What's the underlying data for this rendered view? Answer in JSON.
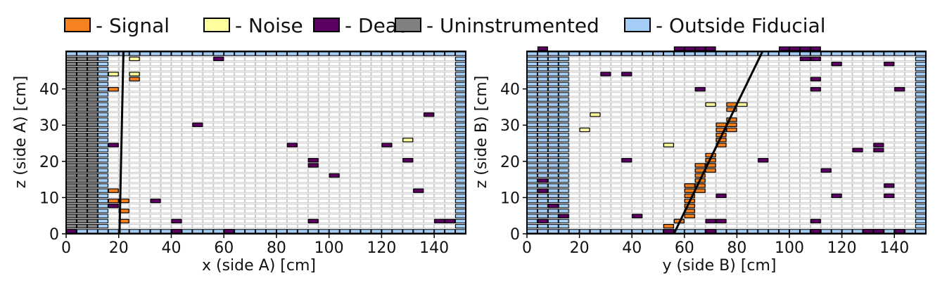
{
  "legend": {
    "items": [
      {
        "label": "- Signal",
        "color": "#f5821f",
        "key": "signal"
      },
      {
        "label": "- Noise",
        "color": "#fefe9e",
        "key": "noise"
      },
      {
        "label": "- Dead",
        "color": "#5b0062",
        "key": "dead"
      },
      {
        "label": "- Uninstrumented",
        "color": "#808080",
        "key": "uninstrumented"
      },
      {
        "label": "- Outside Fiducial",
        "color": "#a3cdf5",
        "key": "outside"
      }
    ]
  },
  "colors": {
    "signal": "#f5821f",
    "noise": "#fefe9e",
    "dead": "#5b0062",
    "uninstrumented": "#808080",
    "outside": "#a3cdf5",
    "empty_fill": "#ffffff",
    "empty_stroke": "#c8c8c8",
    "track": "#000000"
  },
  "chart_data": [
    {
      "type": "scatter",
      "panel": "A",
      "xlabel": "x (side A) [cm]",
      "ylabel": "z (side A) [cm]",
      "xlim": [
        0,
        152
      ],
      "ylim": [
        0,
        50.4
      ],
      "xticks": [
        "0",
        "20",
        "40",
        "60",
        "80",
        "100",
        "120",
        "140"
      ],
      "yticks": [
        "0",
        "10",
        "20",
        "30",
        "40"
      ],
      "grid": {
        "strip_width_cm": 4,
        "row_height_cm": 1.4,
        "rows": 36,
        "columns": 38
      },
      "layers": [
        {
          "name": "uninstrumented",
          "x_range": [
            0,
            12
          ],
          "z_range": [
            1.4,
            49.0
          ],
          "rows": "odd"
        },
        {
          "name": "uninstrumented",
          "x_range": [
            0,
            12
          ],
          "z_range": [
            1.4,
            49.0
          ],
          "rows": "even"
        },
        {
          "name": "outside",
          "x_range": [
            12,
            16
          ],
          "z_range": [
            1.4,
            49.0
          ],
          "rows": "all"
        },
        {
          "name": "outside",
          "x_range": [
            148,
            152
          ],
          "z_range": [
            1.4,
            49.0
          ],
          "rows": "all"
        },
        {
          "name": "outside",
          "x_range": [
            0,
            152
          ],
          "z_range": [
            0,
            1.4
          ],
          "rows": "all"
        },
        {
          "name": "outside",
          "x_range": [
            0,
            152
          ],
          "z_range": [
            49.0,
            50.4
          ],
          "rows": "all"
        }
      ],
      "hits": {
        "signal": [
          [
            16,
            8.4
          ],
          [
            16,
            11.2
          ],
          [
            16,
            39.2
          ],
          [
            20,
            2.8
          ],
          [
            20,
            5.6
          ],
          [
            20,
            8.4
          ],
          [
            24,
            42.0
          ]
        ],
        "noise": [
          [
            16,
            43.4
          ],
          [
            24,
            43.4
          ],
          [
            24,
            47.6
          ],
          [
            128,
            25.2
          ]
        ],
        "dead": [
          [
            0,
            0
          ],
          [
            16,
            7.0
          ],
          [
            32,
            8.4
          ],
          [
            40,
            2.8
          ],
          [
            40,
            0
          ],
          [
            56,
            47.6
          ],
          [
            48,
            29.4
          ],
          [
            60,
            0
          ],
          [
            84,
            23.8
          ],
          [
            92,
            2.8
          ],
          [
            92,
            18.2
          ],
          [
            92,
            19.6
          ],
          [
            100,
            15.4
          ],
          [
            120,
            23.8
          ],
          [
            128,
            19.6
          ],
          [
            132,
            11.2
          ],
          [
            136,
            32.2
          ],
          [
            140,
            2.8
          ],
          [
            144,
            2.8
          ],
          [
            16,
            23.8
          ]
        ]
      },
      "track": {
        "x": [
          20.3,
          21.8
        ],
        "z": [
          0,
          50.4
        ]
      }
    },
    {
      "type": "scatter",
      "panel": "B",
      "xlabel": "y (side B) [cm]",
      "ylabel": "z (side B) [cm]",
      "xlim": [
        0,
        152
      ],
      "ylim": [
        0,
        50.4
      ],
      "xticks": [
        "0",
        "20",
        "40",
        "60",
        "80",
        "100",
        "120",
        "140"
      ],
      "yticks": [
        "0",
        "10",
        "20",
        "30",
        "40"
      ],
      "grid": {
        "strip_width_cm": 4,
        "row_height_cm": 1.4,
        "rows": 36,
        "columns": 38
      },
      "layers": [
        {
          "name": "outside",
          "x_range": [
            0,
            16
          ],
          "z_range": [
            1.4,
            49.0
          ],
          "rows": "all"
        },
        {
          "name": "outside",
          "x_range": [
            148,
            152
          ],
          "z_range": [
            1.4,
            49.0
          ],
          "rows": "all"
        },
        {
          "name": "outside",
          "x_range": [
            0,
            152
          ],
          "z_range": [
            0,
            1.4
          ],
          "rows": "all"
        },
        {
          "name": "outside",
          "x_range": [
            0,
            152
          ],
          "z_range": [
            49.0,
            50.4
          ],
          "rows": "all"
        }
      ],
      "hits": {
        "signal": [
          [
            52,
            1.4
          ],
          [
            56,
            2.8
          ],
          [
            60,
            4.2
          ],
          [
            60,
            5.6
          ],
          [
            60,
            7.0
          ],
          [
            60,
            8.4
          ],
          [
            60,
            9.8
          ],
          [
            60,
            11.2
          ],
          [
            64,
            11.2
          ],
          [
            60,
            12.6
          ],
          [
            64,
            12.6
          ],
          [
            64,
            14.0
          ],
          [
            64,
            15.4
          ],
          [
            64,
            16.8
          ],
          [
            68,
            16.8
          ],
          [
            64,
            18.2
          ],
          [
            68,
            18.2
          ],
          [
            68,
            19.6
          ],
          [
            68,
            21.0
          ],
          [
            72,
            23.8
          ],
          [
            72,
            25.2
          ],
          [
            72,
            26.6
          ],
          [
            72,
            28.0
          ],
          [
            76,
            28.0
          ],
          [
            72,
            29.4
          ],
          [
            76,
            29.4
          ],
          [
            76,
            30.8
          ],
          [
            76,
            33.6
          ],
          [
            76,
            35.0
          ]
        ],
        "noise": [
          [
            68,
            35.0
          ],
          [
            80,
            35.0
          ],
          [
            24,
            32.2
          ],
          [
            20,
            28.0
          ],
          [
            52,
            23.8
          ]
        ],
        "dead": [
          [
            4,
            50.4
          ],
          [
            56,
            50.4
          ],
          [
            60,
            50.4
          ],
          [
            64,
            50.4
          ],
          [
            68,
            50.4
          ],
          [
            96,
            50.4
          ],
          [
            100,
            50.4
          ],
          [
            104,
            50.4
          ],
          [
            108,
            50.4
          ],
          [
            104,
            47.6
          ],
          [
            108,
            47.6
          ],
          [
            116,
            46.2
          ],
          [
            136,
            46.2
          ],
          [
            28,
            43.4
          ],
          [
            36,
            43.4
          ],
          [
            108,
            42.0
          ],
          [
            108,
            39.2
          ],
          [
            64,
            39.2
          ],
          [
            140,
            39.2
          ],
          [
            132,
            23.8
          ],
          [
            132,
            22.4
          ],
          [
            124,
            22.4
          ],
          [
            88,
            19.6
          ],
          [
            36,
            19.6
          ],
          [
            112,
            16.8
          ],
          [
            4,
            14.0
          ],
          [
            4,
            11.2
          ],
          [
            136,
            12.6
          ],
          [
            136,
            9.8
          ],
          [
            116,
            9.8
          ],
          [
            72,
            9.8
          ],
          [
            60,
            12.6
          ],
          [
            8,
            7.0
          ],
          [
            12,
            4.2
          ],
          [
            40,
            4.2
          ],
          [
            4,
            2.8
          ],
          [
            56,
            2.8
          ],
          [
            68,
            2.8
          ],
          [
            72,
            2.8
          ],
          [
            108,
            2.8
          ],
          [
            52,
            0
          ],
          [
            68,
            0
          ],
          [
            108,
            0
          ],
          [
            128,
            0
          ],
          [
            132,
            0
          ],
          [
            140,
            0
          ]
        ]
      },
      "track": {
        "x": [
          56,
          89.8
        ],
        "z": [
          0,
          50.4
        ]
      }
    }
  ]
}
